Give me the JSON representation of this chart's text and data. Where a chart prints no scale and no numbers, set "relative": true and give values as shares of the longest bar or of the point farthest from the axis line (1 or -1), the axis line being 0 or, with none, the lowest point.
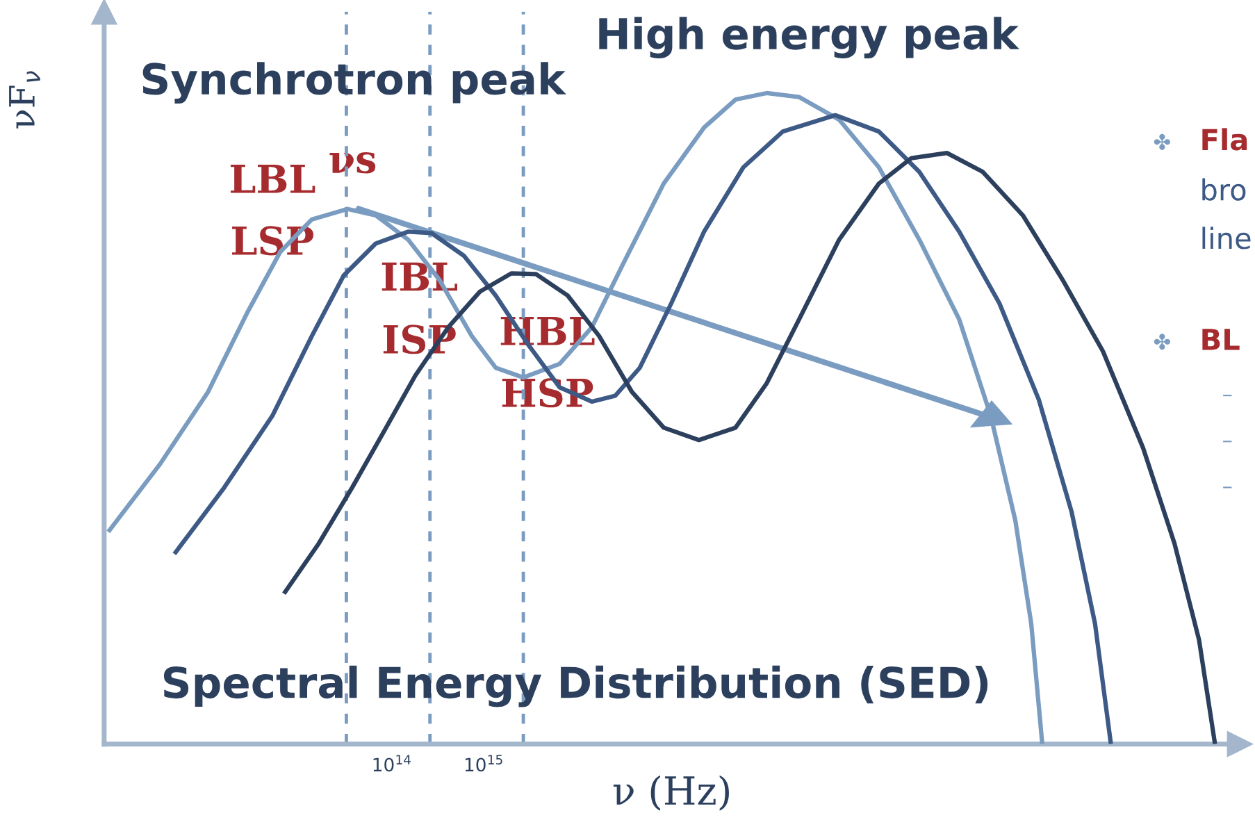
{
  "chart_data": {
    "type": "line",
    "relative": true,
    "log": "x",
    "xlabel": "ν (Hz)",
    "ylabel": "νF$_{ν}$",
    "xlim": [
      74000000000.0,
      1.7e+23
    ],
    "xticks": [
      {
        "value": 100000000000000.0,
        "label": "10$^{14}$"
      },
      {
        "value": 1000000000000000.0,
        "label": "10$^{15}$"
      }
    ],
    "line_style": "solid",
    "series": [
      {
        "color": "#7b9cc1",
        "x": [
          82000000000.0,
          300000000000.0,
          1000000000000.0,
          2700000000000.0,
          6100000000000.0,
          13500000000000.0,
          33000000000000.0,
          67000000000000.0,
          150000000000000.0,
          330000000000000.0,
          740000000000000.0,
          1350000000000000.0,
          2700000000000000.0,
          6700000000000000.0,
          1.5e+16,
          3.3e+16,
          9.1e+16,
          2.5e+17,
          5.5e+17,
          1.2e+18,
          2.7e+18,
          7.4e+18,
          2e+19,
          5.5e+19,
          1.5e+20,
          3.3e+20,
          6.1e+20,
          9.1e+20,
          1.2e+21
        ],
        "values": [
          0.326,
          0.43,
          0.541,
          0.664,
          0.756,
          0.806,
          0.822,
          0.812,
          0.775,
          0.713,
          0.627,
          0.578,
          0.563,
          0.584,
          0.64,
          0.738,
          0.861,
          0.947,
          0.99,
          1.0,
          0.994,
          0.959,
          0.886,
          0.775,
          0.652,
          0.504,
          0.344,
          0.185,
          0.0
        ]
      },
      {
        "color": "#3d5a86",
        "x": [
          430000000000.0,
          1500000000000.0,
          5000000000000.0,
          13500000000000.0,
          30000000000000.0,
          67000000000000.0,
          150000000000000.0,
          270000000000000.0,
          610000000000000.0,
          1350000000000000.0,
          3000000000000000.0,
          6700000000000000.0,
          1.5e+16,
          2.7e+16,
          5e+16,
          1.1e+17,
          2.5e+17,
          6.7e+17,
          1.8e+18,
          6.7e+18,
          2e+19,
          5.5e+19,
          1.5e+20,
          4.1e+20,
          1.1e+21,
          2.5e+21,
          4.5e+21,
          6.7e+21
        ],
        "values": [
          0.292,
          0.394,
          0.504,
          0.627,
          0.72,
          0.769,
          0.787,
          0.785,
          0.75,
          0.689,
          0.615,
          0.548,
          0.526,
          0.535,
          0.578,
          0.677,
          0.787,
          0.886,
          0.941,
          0.966,
          0.941,
          0.879,
          0.787,
          0.677,
          0.529,
          0.357,
          0.185,
          0.0
        ]
      },
      {
        "color": "#2c405e",
        "x": [
          6700000000000.0,
          16000000000000.0,
          37000000000000.0,
          82000000000000.0,
          180000000000000.0,
          410000000000000.0,
          910000000000000.0,
          2000000000000000.0,
          3700000000000000.0,
          8200000000000000.0,
          1.8e+16,
          4.1e+16,
          9.1e+16,
          2.2e+17,
          5.5e+17,
          1.2e+18,
          2.7e+18,
          7.4e+18,
          2e+19,
          4.5e+19,
          1.1e+20,
          2.7e+20,
          7.4e+20,
          2e+21,
          5.5e+21,
          1.5e+22,
          3.3e+22,
          6.1e+22,
          9.1e+22
        ],
        "values": [
          0.231,
          0.308,
          0.394,
          0.48,
          0.566,
          0.64,
          0.695,
          0.723,
          0.722,
          0.689,
          0.627,
          0.541,
          0.486,
          0.467,
          0.486,
          0.554,
          0.652,
          0.775,
          0.861,
          0.9,
          0.908,
          0.879,
          0.812,
          0.713,
          0.603,
          0.455,
          0.308,
          0.16,
          0.0
        ]
      }
    ],
    "ref_lines": [
      {
        "axis": "x",
        "value": 32000000000000.0,
        "color": "#7b9cc1",
        "line_style": "dashed"
      },
      {
        "axis": "x",
        "value": 260000000000000.0,
        "color": "#7b9cc1",
        "line_style": "dashed"
      },
      {
        "axis": "x",
        "value": 2700000000000000.0,
        "color": "#7b9cc1",
        "line_style": "dashed"
      }
    ],
    "annotations": [
      "LBL",
      "LSP",
      "νs",
      "IBL",
      "ISP",
      "HBL",
      "HSP",
      "Synchrotron peak",
      "High energy peak",
      "Spectral Energy Distribution (SED)",
      "✤",
      "Fla",
      "bro",
      "line",
      "✤",
      "BL",
      "–",
      "–",
      "–"
    ]
  }
}
